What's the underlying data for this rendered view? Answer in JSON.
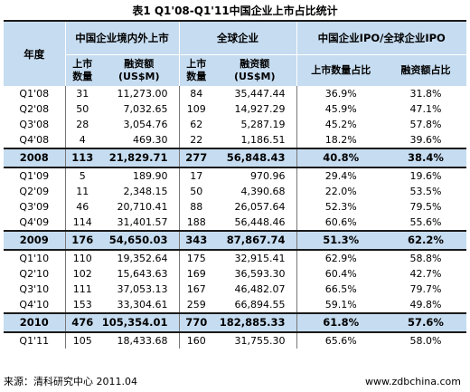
{
  "title": "表1 Q1'08-Q1'11中国企业上市占比统计",
  "header": {
    "year": "年度",
    "china_group": "中国企业境内外上市",
    "global_group": "全球企业",
    "ratio_group": "中国企业IPO/全球企业IPO",
    "china_count": "上市\n数量",
    "china_amount": "融资额\n(US$M)",
    "global_count": "上市\n数量",
    "global_amount": "融资额\n(US$M)",
    "ratio_count": "上市数量占比",
    "ratio_amount": "融资额占比"
  },
  "rows": [
    {
      "period": "Q1'08",
      "cn_count": "31",
      "cn_amount": "11,273.00",
      "gl_count": "84",
      "gl_amount": "35,447.44",
      "pct_count": "36.9%",
      "pct_amount": "31.8%",
      "type": "q"
    },
    {
      "period": "Q2'08",
      "cn_count": "50",
      "cn_amount": "7,032.65",
      "gl_count": "109",
      "gl_amount": "14,927.29",
      "pct_count": "45.9%",
      "pct_amount": "47.1%",
      "type": "q"
    },
    {
      "period": "Q3'08",
      "cn_count": "28",
      "cn_amount": "3,054.76",
      "gl_count": "62",
      "gl_amount": "5,287.19",
      "pct_count": "45.2%",
      "pct_amount": "57.8%",
      "type": "q"
    },
    {
      "period": "Q4'08",
      "cn_count": "4",
      "cn_amount": "469.30",
      "gl_count": "22",
      "gl_amount": "1,186.51",
      "pct_count": "18.2%",
      "pct_amount": "39.6%",
      "type": "q"
    },
    {
      "period": "2008",
      "cn_count": "113",
      "cn_amount": "21,829.71",
      "gl_count": "277",
      "gl_amount": "56,848.43",
      "pct_count": "40.8%",
      "pct_amount": "38.4%",
      "type": "y"
    },
    {
      "period": "Q1'09",
      "cn_count": "5",
      "cn_amount": "189.90",
      "gl_count": "17",
      "gl_amount": "970.96",
      "pct_count": "29.4%",
      "pct_amount": "19.6%",
      "type": "q"
    },
    {
      "period": "Q2'09",
      "cn_count": "11",
      "cn_amount": "2,348.15",
      "gl_count": "50",
      "gl_amount": "4,390.68",
      "pct_count": "22.0%",
      "pct_amount": "53.5%",
      "type": "q"
    },
    {
      "period": "Q3'09",
      "cn_count": "46",
      "cn_amount": "20,710.41",
      "gl_count": "88",
      "gl_amount": "26,057.64",
      "pct_count": "52.3%",
      "pct_amount": "79.5%",
      "type": "q"
    },
    {
      "period": "Q4'09",
      "cn_count": "114",
      "cn_amount": "31,401.57",
      "gl_count": "188",
      "gl_amount": "56,448.46",
      "pct_count": "60.6%",
      "pct_amount": "55.6%",
      "type": "q"
    },
    {
      "period": "2009",
      "cn_count": "176",
      "cn_amount": "54,650.03",
      "gl_count": "343",
      "gl_amount": "87,867.74",
      "pct_count": "51.3%",
      "pct_amount": "62.2%",
      "type": "y"
    },
    {
      "period": "Q1'10",
      "cn_count": "110",
      "cn_amount": "19,352.64",
      "gl_count": "175",
      "gl_amount": "32,915.41",
      "pct_count": "62.9%",
      "pct_amount": "58.8%",
      "type": "q"
    },
    {
      "period": "Q2'10",
      "cn_count": "102",
      "cn_amount": "15,643.63",
      "gl_count": "169",
      "gl_amount": "36,593.30",
      "pct_count": "60.4%",
      "pct_amount": "42.7%",
      "type": "q"
    },
    {
      "period": "Q3'10",
      "cn_count": "111",
      "cn_amount": "37,053.13",
      "gl_count": "167",
      "gl_amount": "46,482.07",
      "pct_count": "66.5%",
      "pct_amount": "79.7%",
      "type": "q"
    },
    {
      "period": "Q4'10",
      "cn_count": "153",
      "cn_amount": "33,304.61",
      "gl_count": "259",
      "gl_amount": "66,894.55",
      "pct_count": "59.1%",
      "pct_amount": "49.8%",
      "type": "q"
    },
    {
      "period": "2010",
      "cn_count": "476",
      "cn_amount": "105,354.01",
      "gl_count": "770",
      "gl_amount": "182,885.33",
      "pct_count": "61.8%",
      "pct_amount": "57.6%",
      "type": "y"
    },
    {
      "period": "Q1'11",
      "cn_count": "105",
      "cn_amount": "18,433.68",
      "gl_count": "160",
      "gl_amount": "31,755.30",
      "pct_count": "65.6%",
      "pct_amount": "58.0%",
      "type": "q"
    }
  ],
  "footer": {
    "source": "来源：清科研究中心  2011.04",
    "url": "www.zdbchina.com"
  },
  "colors": {
    "header_bg": "#c6dcf0",
    "rule": "#1a1a1a"
  }
}
